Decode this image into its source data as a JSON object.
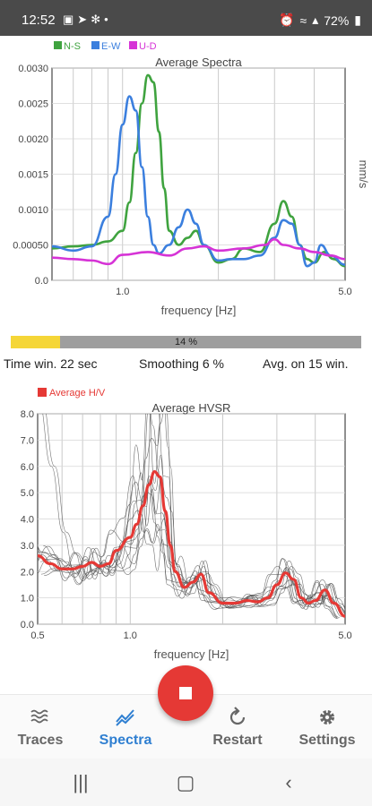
{
  "status_bar": {
    "time": "12:52",
    "left_icons": [
      "image-icon",
      "send-icon",
      "fan-icon",
      "dot-icon"
    ],
    "right_icons": [
      "alarm-icon",
      "wifi-icon",
      "signal-icon",
      "battery-icon"
    ],
    "battery": "72%"
  },
  "spectra": {
    "title": "Average Spectra",
    "xlabel": "frequency [Hz]",
    "ylabel": "mm/s",
    "x_ticks": [
      "1.0",
      "5.0"
    ],
    "y_ticks": [
      "0.0030",
      "0.0025",
      "0.0020",
      "0.0015",
      "0.0010",
      "0.00050",
      "0.0"
    ],
    "legend": [
      "N-S",
      "E-W",
      "U-D"
    ],
    "colors": {
      "ns": "#3fa33f",
      "ew": "#3b7fde",
      "ud": "#d633d6"
    }
  },
  "progress": {
    "label": "14 %",
    "value": 0.14
  },
  "params": {
    "time_window": "Time win. 22 sec",
    "smoothing": "Smoothing 6 %",
    "average": "Avg. on 15 win."
  },
  "hvsr": {
    "title": "Average HVSR",
    "xlabel": "frequency [Hz]",
    "legend": "Average H/V",
    "x_ticks": [
      "0.5",
      "1.0",
      "5.0"
    ],
    "y_ticks": [
      "8.0",
      "7.0",
      "6.0",
      "5.0",
      "4.0",
      "3.0",
      "2.0",
      "1.0",
      "0.0"
    ],
    "avg_color": "#e53935"
  },
  "chart_data": [
    {
      "type": "line",
      "title": "Average Spectra",
      "xlabel": "frequency [Hz]",
      "ylabel": "mm/s",
      "x_scale": "log",
      "xlim": [
        0.6,
        5.0
      ],
      "ylim": [
        0,
        0.003
      ],
      "grid": true,
      "legend_position": "top-left",
      "series": [
        {
          "name": "N-S",
          "color": "#3fa33f",
          "x": [
            0.6,
            0.7,
            0.8,
            0.9,
            1.0,
            1.05,
            1.1,
            1.15,
            1.2,
            1.25,
            1.3,
            1.35,
            1.4,
            1.5,
            1.6,
            1.7,
            1.8,
            2.0,
            2.2,
            2.4,
            2.7,
            3.0,
            3.2,
            3.4,
            3.6,
            3.8,
            4.0,
            4.3,
            4.6,
            5.0
          ],
          "y": [
            0.00045,
            0.00048,
            0.0005,
            0.00055,
            0.0007,
            0.0011,
            0.0018,
            0.0025,
            0.0029,
            0.0028,
            0.0021,
            0.0013,
            0.0007,
            0.0005,
            0.0006,
            0.0007,
            0.0005,
            0.00025,
            0.0003,
            0.00045,
            0.0004,
            0.0008,
            0.00112,
            0.0009,
            0.0005,
            0.0003,
            0.00025,
            0.0004,
            0.0003,
            0.0002
          ]
        },
        {
          "name": "E-W",
          "color": "#3b7fde",
          "x": [
            0.6,
            0.7,
            0.8,
            0.9,
            0.95,
            1.0,
            1.05,
            1.1,
            1.15,
            1.2,
            1.25,
            1.3,
            1.4,
            1.5,
            1.6,
            1.7,
            1.8,
            2.0,
            2.2,
            2.4,
            2.7,
            3.0,
            3.2,
            3.4,
            3.6,
            3.8,
            4.0,
            4.2,
            4.5,
            5.0
          ],
          "y": [
            0.00048,
            0.00042,
            0.00048,
            0.0009,
            0.0015,
            0.0022,
            0.0026,
            0.0024,
            0.0016,
            0.0009,
            0.0005,
            0.00038,
            0.0005,
            0.00075,
            0.001,
            0.0008,
            0.0005,
            0.00028,
            0.0003,
            0.0003,
            0.00035,
            0.0006,
            0.00085,
            0.0008,
            0.0005,
            0.0002,
            0.00025,
            0.0005,
            0.00035,
            0.00022
          ]
        },
        {
          "name": "U-D",
          "color": "#d633d6",
          "x": [
            0.6,
            0.7,
            0.8,
            0.9,
            1.0,
            1.2,
            1.4,
            1.6,
            1.8,
            2.0,
            2.4,
            2.8,
            3.0,
            3.2,
            3.6,
            4.0,
            4.5,
            5.0
          ],
          "y": [
            0.00032,
            0.0003,
            0.00028,
            0.00023,
            0.00036,
            0.0004,
            0.00035,
            0.00045,
            0.00048,
            0.00042,
            0.00045,
            0.0005,
            0.00058,
            0.0005,
            0.00045,
            0.0004,
            0.00035,
            0.0003
          ]
        }
      ]
    },
    {
      "type": "line",
      "title": "Average HVSR",
      "xlabel": "frequency [Hz]",
      "x_scale": "log",
      "xlim": [
        0.5,
        5.0
      ],
      "ylim": [
        0,
        8
      ],
      "grid": true,
      "legend_position": "top-left",
      "series": [
        {
          "name": "Average H/V",
          "color": "#e53935",
          "x": [
            0.5,
            0.55,
            0.6,
            0.65,
            0.7,
            0.75,
            0.8,
            0.85,
            0.9,
            1.0,
            1.05,
            1.1,
            1.15,
            1.2,
            1.25,
            1.3,
            1.35,
            1.4,
            1.5,
            1.6,
            1.7,
            1.8,
            2.0,
            2.2,
            2.4,
            2.6,
            2.8,
            3.0,
            3.2,
            3.4,
            3.6,
            3.8,
            4.0,
            4.3,
            4.6,
            5.0
          ],
          "y": [
            2.6,
            2.3,
            2.1,
            2.1,
            2.2,
            2.35,
            2.2,
            2.3,
            2.8,
            3.3,
            3.8,
            4.5,
            5.3,
            5.8,
            5.6,
            4.3,
            3.0,
            2.0,
            1.4,
            1.6,
            1.9,
            1.2,
            0.8,
            0.8,
            0.9,
            0.85,
            1.0,
            1.5,
            1.95,
            1.7,
            1.0,
            0.8,
            0.9,
            1.3,
            0.8,
            0.3
          ]
        }
      ]
    }
  ],
  "bottom_nav": {
    "items": [
      {
        "label": "Traces",
        "icon": "waves-icon"
      },
      {
        "label": "Spectra",
        "icon": "chart-line-icon"
      },
      {
        "label": "Restart",
        "icon": "restart-icon"
      },
      {
        "label": "Settings",
        "icon": "gear-icon"
      }
    ],
    "active": "Spectra"
  },
  "fab": {
    "icon": "stop-icon",
    "color": "#e53935"
  },
  "system_nav": {
    "icons": [
      "recents-icon",
      "home-icon",
      "back-icon"
    ]
  }
}
